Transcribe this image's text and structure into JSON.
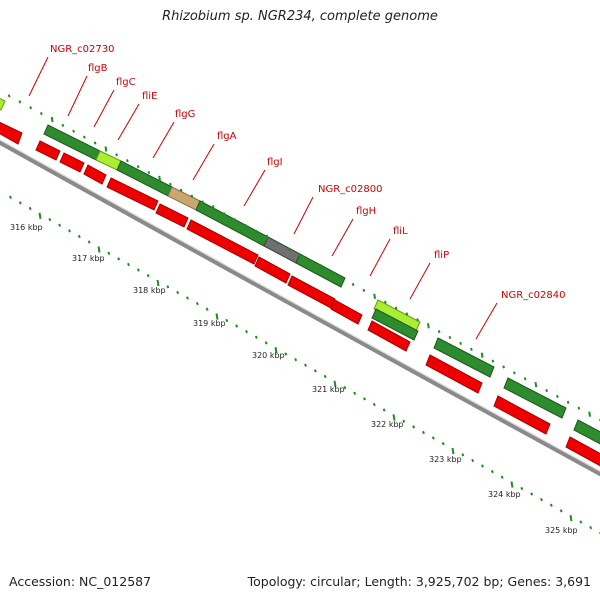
{
  "title": "Rhizobium sp. NGR234, complete genome",
  "footer": {
    "accession": "Accession: NC_012587",
    "topology": "Topology: circular; Length: 3,925,702 bp; Genes: 3,691"
  },
  "colors": {
    "gene_label": "#cc0000",
    "leader_line": "#cc0000",
    "forward_gene": "#2e8b2e",
    "forward_highlight": "#aaee33",
    "forward_tan": "#c8a870",
    "forward_grey": "#707070",
    "reverse_gene": "#ee0000",
    "backbone": "#888888",
    "tick": "#1e8c1e"
  },
  "gene_labels": [
    {
      "name": "NGR_c02730"
    },
    {
      "name": "flgB"
    },
    {
      "name": "flgC"
    },
    {
      "name": "fliE"
    },
    {
      "name": "flgG"
    },
    {
      "name": "flgA"
    },
    {
      "name": "flgI"
    },
    {
      "name": "NGR_c02800"
    },
    {
      "name": "flgH"
    },
    {
      "name": "fliL"
    },
    {
      "name": "fliP"
    },
    {
      "name": "NGR_c02840"
    }
  ],
  "kbp_labels": [
    "316 kbp",
    "317 kbp",
    "318 kbp",
    "319 kbp",
    "320 kbp",
    "321 kbp",
    "322 kbp",
    "323 kbp",
    "324 kbp",
    "325 kbp"
  ]
}
